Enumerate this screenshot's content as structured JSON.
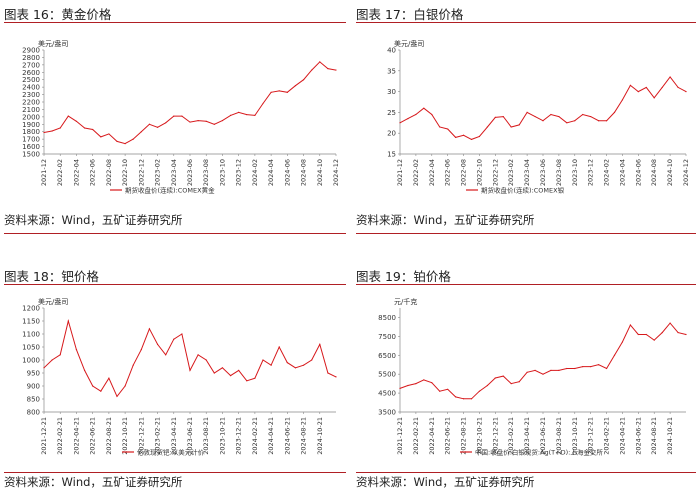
{
  "panels": [
    {
      "title": "图表 16：黄金价格",
      "source": "资料来源：Wind，五矿证券研究所",
      "chart_data": {
        "type": "line",
        "unit": "美元/盎司",
        "ylim": [
          1500,
          2900
        ],
        "yticks": [
          1500,
          1600,
          1700,
          1800,
          1900,
          2000,
          2100,
          2200,
          2300,
          2400,
          2500,
          2600,
          2700,
          2800,
          2900
        ],
        "xlim": [
          "2021-12",
          "2024-12"
        ],
        "xticks": [
          "2021-12",
          "2022-02",
          "2022-04",
          "2022-06",
          "2022-08",
          "2022-10",
          "2022-12",
          "2023-02",
          "2023-04",
          "2023-06",
          "2023-08",
          "2023-10",
          "2023-12",
          "2024-02",
          "2024-04",
          "2024-06",
          "2024-08",
          "2024-10",
          "2024-12"
        ],
        "series": [
          {
            "name": "期货收盘价(连续):COMEX黄金",
            "color": "#d7191c",
            "x": [
              "2021-12",
              "2022-01",
              "2022-02",
              "2022-03",
              "2022-04",
              "2022-05",
              "2022-06",
              "2022-07",
              "2022-08",
              "2022-09",
              "2022-10",
              "2022-11",
              "2022-12",
              "2023-01",
              "2023-02",
              "2023-03",
              "2023-04",
              "2023-05",
              "2023-06",
              "2023-07",
              "2023-08",
              "2023-09",
              "2023-10",
              "2023-11",
              "2023-12",
              "2024-01",
              "2024-02",
              "2024-03",
              "2024-04",
              "2024-05",
              "2024-06",
              "2024-07",
              "2024-08",
              "2024-09",
              "2024-10",
              "2024-11",
              "2024-12"
            ],
            "values": [
              1790,
              1810,
              1850,
              2010,
              1940,
              1850,
              1830,
              1730,
              1770,
              1670,
              1640,
              1700,
              1800,
              1900,
              1860,
              1920,
              2010,
              2010,
              1930,
              1950,
              1940,
              1900,
              1950,
              2020,
              2060,
              2030,
              2020,
              2180,
              2330,
              2350,
              2330,
              2420,
              2500,
              2630,
              2740,
              2650,
              2630
            ]
          }
        ]
      }
    },
    {
      "title": "图表 17：白银价格",
      "source": "资料来源：Wind，五矿证券研究所",
      "chart_data": {
        "type": "line",
        "unit": "美元/盎司",
        "ylim": [
          15,
          40
        ],
        "yticks": [
          15,
          20,
          25,
          30,
          35,
          40
        ],
        "xlim": [
          "2021-12",
          "2024-12"
        ],
        "xticks": [
          "2021-12",
          "2022-02",
          "2022-04",
          "2022-06",
          "2022-08",
          "2022-10",
          "2022-12",
          "2023-02",
          "2023-04",
          "2023-06",
          "2023-08",
          "2023-10",
          "2023-12",
          "2024-02",
          "2024-04",
          "2024-06",
          "2024-08",
          "2024-10",
          "2024-12"
        ],
        "series": [
          {
            "name": "期货收盘价(连续):COMEX银",
            "color": "#d7191c",
            "x": [
              "2021-12",
              "2022-01",
              "2022-02",
              "2022-03",
              "2022-04",
              "2022-05",
              "2022-06",
              "2022-07",
              "2022-08",
              "2022-09",
              "2022-10",
              "2022-11",
              "2022-12",
              "2023-01",
              "2023-02",
              "2023-03",
              "2023-04",
              "2023-05",
              "2023-06",
              "2023-07",
              "2023-08",
              "2023-09",
              "2023-10",
              "2023-11",
              "2023-12",
              "2024-01",
              "2024-02",
              "2024-03",
              "2024-04",
              "2024-05",
              "2024-06",
              "2024-07",
              "2024-08",
              "2024-09",
              "2024-10",
              "2024-11",
              "2024-12"
            ],
            "values": [
              22.5,
              23.5,
              24.5,
              26.0,
              24.5,
              21.5,
              21.0,
              19.0,
              19.5,
              18.5,
              19.2,
              21.5,
              23.8,
              24.0,
              21.5,
              22.0,
              25.0,
              24.0,
              23.0,
              24.5,
              24.0,
              22.5,
              23.0,
              24.5,
              24.0,
              23.0,
              23.0,
              25.0,
              28.0,
              31.5,
              30.0,
              31.0,
              28.5,
              31.0,
              33.5,
              31.0,
              30.0
            ]
          }
        ]
      }
    },
    {
      "title": "图表 18：钯价格",
      "source": "资料来源：Wind，五矿证券研究所",
      "chart_data": {
        "type": "line",
        "unit": "美元/盎司",
        "ylim": [
          800,
          1200
        ],
        "yticks": [
          800,
          850,
          900,
          950,
          1000,
          1050,
          1100,
          1150,
          1200
        ],
        "xlim": [
          "2021-12-21",
          "2024-12-21"
        ],
        "xticks": [
          "2021-12-21",
          "2022-02-21",
          "2022-04-21",
          "2022-06-21",
          "2022-08-21",
          "2022-10-21",
          "2022-12-21",
          "2023-02-21",
          "2023-04-21",
          "2023-06-21",
          "2023-08-21",
          "2023-10-21",
          "2023-12-21",
          "2024-02-21",
          "2024-04-21",
          "2024-06-21",
          "2024-08-21",
          "2024-10-21"
        ],
        "series": [
          {
            "name": "伦敦现货钯:以美元计价",
            "color": "#d7191c",
            "x": [
              "2021-12",
              "2022-01",
              "2022-02",
              "2022-03",
              "2022-04",
              "2022-05",
              "2022-06",
              "2022-07",
              "2022-08",
              "2022-09",
              "2022-10",
              "2022-11",
              "2022-12",
              "2023-01",
              "2023-02",
              "2023-03",
              "2023-04",
              "2023-05",
              "2023-06",
              "2023-07",
              "2023-08",
              "2023-09",
              "2023-10",
              "2023-11",
              "2023-12",
              "2024-01",
              "2024-02",
              "2024-03",
              "2024-04",
              "2024-05",
              "2024-06",
              "2024-07",
              "2024-08",
              "2024-09",
              "2024-10",
              "2024-11",
              "2024-12"
            ],
            "values": [
              970,
              1000,
              1020,
              1150,
              1040,
              960,
              900,
              880,
              930,
              860,
              900,
              980,
              1040,
              1120,
              1060,
              1020,
              1080,
              1100,
              960,
              1020,
              1000,
              950,
              970,
              940,
              960,
              920,
              930,
              1000,
              980,
              1050,
              990,
              970,
              980,
              1000,
              1060,
              950,
              935
            ]
          }
        ]
      }
    },
    {
      "title": "图表 19：铂价格",
      "source": "资料来源：Wind，五矿证券研究所",
      "chart_data": {
        "type": "line",
        "unit": "元/千克",
        "ylim": [
          3500,
          9000
        ],
        "yticks": [
          3500,
          4500,
          5500,
          6500,
          7500,
          8500
        ],
        "xlim": [
          "2021-12-21",
          "2024-12-21"
        ],
        "xticks": [
          "2021-12-21",
          "2022-02-21",
          "2022-04-21",
          "2022-06-21",
          "2022-08-21",
          "2022-10-21",
          "2022-12-21",
          "2023-02-21",
          "2023-04-21",
          "2023-06-21",
          "2023-08-21",
          "2023-10-21",
          "2023-12-21",
          "2024-02-21",
          "2024-04-21",
          "2024-06-21",
          "2024-08-21",
          "2024-10-21"
        ],
        "series": [
          {
            "name": "中国:收盘价:白银现货:Ag(T+D):上海金交所",
            "color": "#d7191c",
            "x": [
              "2021-12",
              "2022-01",
              "2022-02",
              "2022-03",
              "2022-04",
              "2022-05",
              "2022-06",
              "2022-07",
              "2022-08",
              "2022-09",
              "2022-10",
              "2022-11",
              "2022-12",
              "2023-01",
              "2023-02",
              "2023-03",
              "2023-04",
              "2023-05",
              "2023-06",
              "2023-07",
              "2023-08",
              "2023-09",
              "2023-10",
              "2023-11",
              "2023-12",
              "2024-01",
              "2024-02",
              "2024-03",
              "2024-04",
              "2024-05",
              "2024-06",
              "2024-07",
              "2024-08",
              "2024-09",
              "2024-10",
              "2024-11",
              "2024-12"
            ],
            "values": [
              4750,
              4900,
              5000,
              5200,
              5050,
              4600,
              4700,
              4300,
              4200,
              4200,
              4600,
              4900,
              5300,
              5400,
              5000,
              5100,
              5600,
              5700,
              5500,
              5700,
              5700,
              5800,
              5800,
              5900,
              5900,
              6000,
              5800,
              6500,
              7200,
              8100,
              7600,
              7600,
              7300,
              7700,
              8200,
              7700,
              7600
            ]
          }
        ]
      }
    }
  ]
}
